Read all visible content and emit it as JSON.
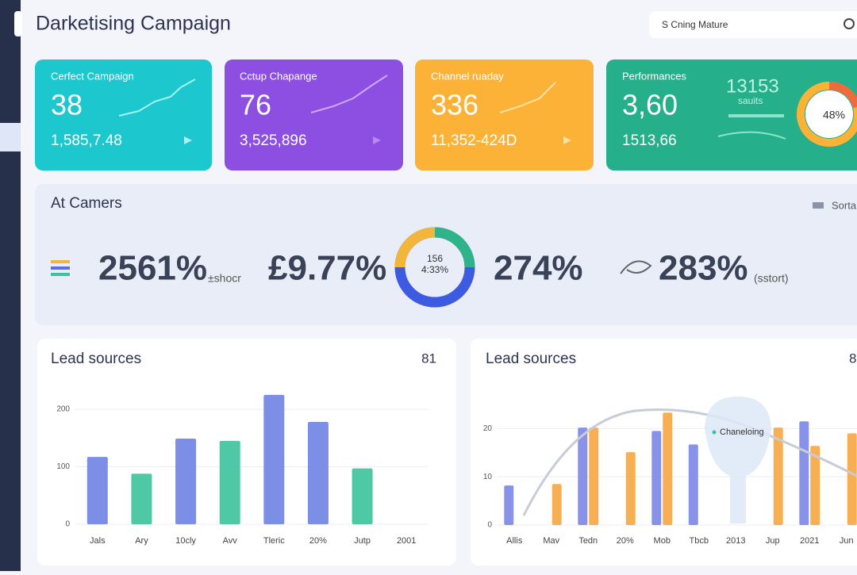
{
  "header": {
    "title": "Darketising Campaign",
    "search": "S Cning Mature"
  },
  "cards": [
    {
      "label": "Cerfect Campaign",
      "value": "38",
      "sub": "1,585,7.48"
    },
    {
      "label": "Cctup Chapange",
      "value": "76",
      "sub": "3,525,896"
    },
    {
      "label": "Channel ruaday",
      "value": "336",
      "sub": "11,352-424D"
    },
    {
      "label": "Performances",
      "value": "3,60",
      "sub": "1513,66",
      "extra": "13153",
      "extra_sub": "sauits",
      "ring": "48%"
    }
  ],
  "summary": {
    "title": "At Camers",
    "sort": "Sorta",
    "stats": [
      {
        "value": "2561%",
        "note": "±shocr"
      },
      {
        "value": "£9.77%"
      },
      {
        "value": "274%"
      },
      {
        "value": "283%",
        "note": "(sstort)"
      }
    ],
    "ring_top": "156",
    "ring_bottom": "4:33%"
  },
  "charts": [
    {
      "type": "bar",
      "title": "Lead sources",
      "badge": "81",
      "categories": [
        "Jals",
        "Ary",
        "10cly",
        "Avv",
        "Tleric",
        "20%",
        "Jutp",
        "2001"
      ],
      "series": [
        {
          "values": [
            117,
            88,
            149,
            145,
            225,
            178,
            97,
            null
          ],
          "colors": [
            "#6f82e4",
            "#3cc29c",
            "#6f82e4",
            "#3cc29c",
            "#6f82e4",
            "#6f82e4",
            "#3cc29c",
            null
          ]
        }
      ],
      "ylim": [
        0,
        240
      ],
      "yticks": [
        0,
        100,
        200
      ]
    },
    {
      "type": "bar",
      "title": "Lead sources",
      "badge": "8",
      "tooltip": "Chaneloing",
      "categories": [
        "Allis",
        "Mav",
        "Tedn",
        "20%",
        "Mob",
        "Tbcb",
        "2013",
        "Jup",
        "2021",
        "Jun"
      ],
      "series": [
        {
          "color": "#7b86e6",
          "values": [
            8.2,
            null,
            20.2,
            null,
            19.5,
            16.7,
            null,
            null,
            21.5,
            null
          ]
        },
        {
          "color": "#f7a640",
          "values": [
            null,
            8.5,
            20.2,
            15.1,
            23.3,
            null,
            null,
            20.2,
            16.4,
            19
          ]
        }
      ],
      "ylim": [
        0,
        24
      ],
      "yticks": [
        0,
        10,
        20
      ]
    }
  ]
}
